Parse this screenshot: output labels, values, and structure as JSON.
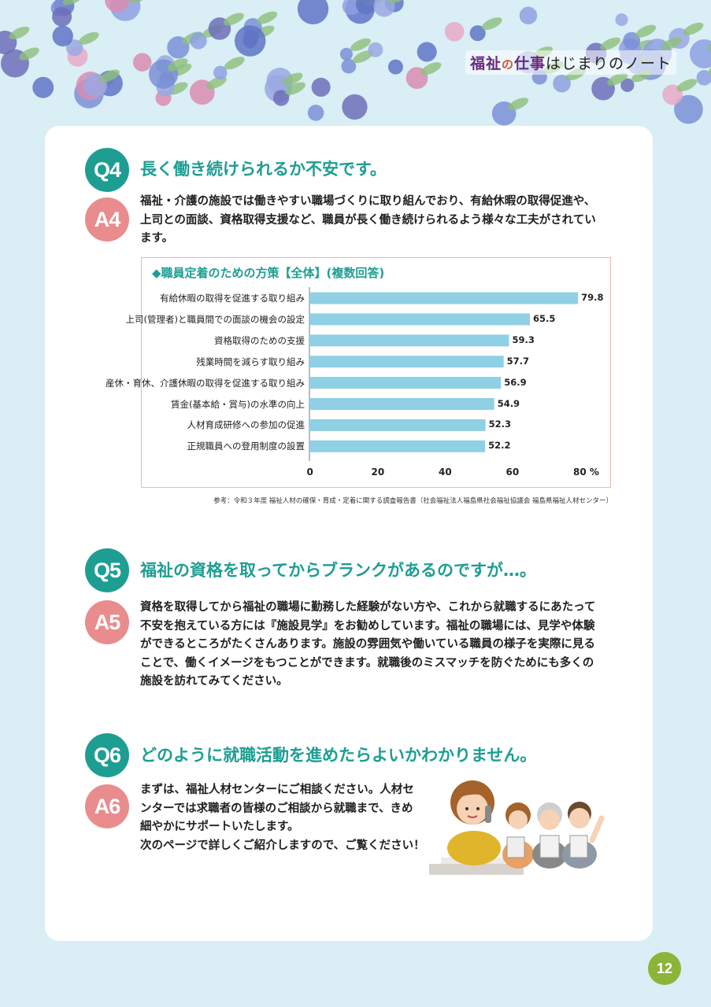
{
  "header": {
    "series_title": {
      "part1": "福祉",
      "part2": "の",
      "part3": "仕事",
      "part4": "はじまりのノート"
    }
  },
  "q4": {
    "badge": "Q4",
    "question": "長く働き続けられるか不安です。",
    "answer_badge": "A4",
    "answer_lines": [
      "福祉・介護の施設では働きやすい職場づくりに取り組んでおり、有給休暇の取得促進や、",
      "上司との面談、資格取得支援など、職員が長く働き続けられるよう様々な工夫がされてい",
      "ます。"
    ]
  },
  "chart_data": {
    "type": "bar",
    "title": "◆職員定着のための方策【全体】(複数回答)",
    "categories": [
      "有給休暇の取得を促進する取り組み",
      "上司(管理者)と職員間での面談の機会の設定",
      "資格取得のための支援",
      "残業時間を減らす取り組み",
      "産休・育休、介護休暇の取得を促進する取り組み",
      "賃金(基本給・賞与)の水準の向上",
      "人材育成研修への参加の促進",
      "正規職員への登用制度の設置"
    ],
    "values": [
      79.8,
      65.5,
      59.3,
      57.7,
      56.9,
      54.9,
      52.3,
      52.2
    ],
    "value_labels": [
      "79.8",
      "65.5",
      "59.3",
      "57.7",
      "56.9",
      "54.9",
      "52.3",
      "52.2"
    ],
    "xlim": [
      0,
      80
    ],
    "ticks": [
      "0",
      "20",
      "40",
      "60",
      "80"
    ],
    "unit": "%",
    "bar_color": "#8fd0e4",
    "orientation": "horizontal"
  },
  "source_note": "参考：令和３年度 福祉人材の確保・育成・定着に関する調査報告書（社会福祉法人福島県社会福祉協議会 福島県福祉人材センター）",
  "q5": {
    "badge": "Q5",
    "question": "福祉の資格を取ってからブランクがあるのですが…。",
    "answer_badge": "A5",
    "answer_lines": [
      "資格を取得してから福祉の職場に勤務した経験がない方や、これから就職するにあたって",
      "不安を抱えている方には『施設見学』をお勧めしています。福祉の職場には、見学や体験",
      "ができるところがたくさんあります。施設の雰囲気や働いている職員の様子を実際に見る",
      "ことで、働くイメージをもつことができます。就職後のミスマッチを防ぐためにも多くの",
      "施設を訪れてみてください。"
    ]
  },
  "q6": {
    "badge": "Q6",
    "question": "どのように就職活動を進めたらよいかわかりません。",
    "answer_badge": "A6",
    "answer_lines": [
      "まずは、福祉人材センターにご相談ください。人材セ",
      "ンターでは求職者の皆様のご相談から就職まで、きめ",
      "細やかにサポートいたします。",
      "次のページで詳しくご紹介しますので、ご覧ください！"
    ]
  },
  "page_number": "12",
  "colors": {
    "teal": "#1e9e92",
    "pink": "#e98c8d",
    "green_page": "#8bb43a"
  }
}
